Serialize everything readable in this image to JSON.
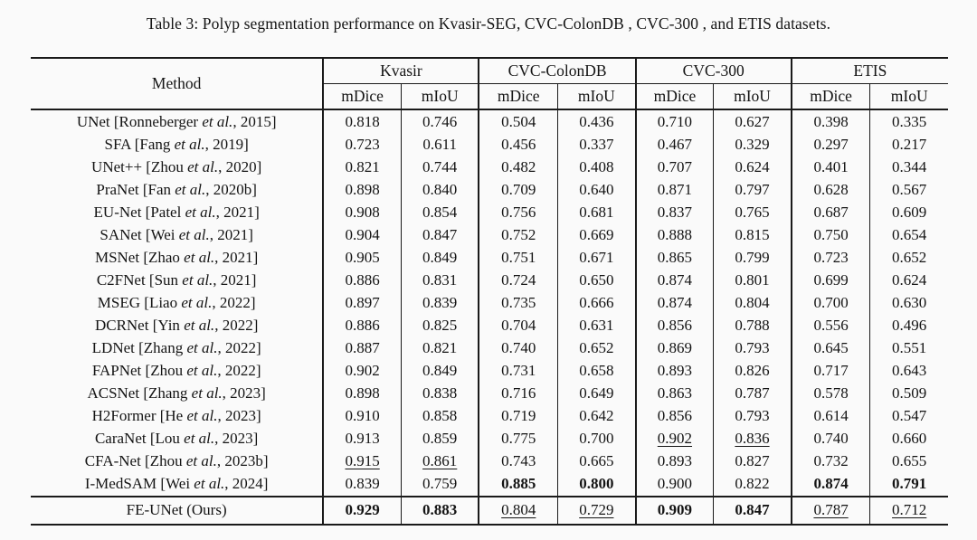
{
  "colors": {
    "ink": "#141414",
    "rule": "#1a1a1a",
    "background": "#fafafa"
  },
  "title": "Table 3: Polyp segmentation performance on Kvasir-SEG, CVC-ColonDB , CVC-300 , and ETIS datasets.",
  "table": {
    "method_header": "Method",
    "groups": [
      {
        "label": "Kvasir",
        "sub": [
          "mDice",
          "mIoU"
        ]
      },
      {
        "label": "CVC-ColonDB",
        "sub": [
          "mDice",
          "mIoU"
        ]
      },
      {
        "label": "CVC-300",
        "sub": [
          "mDice",
          "mIoU"
        ]
      },
      {
        "label": "ETIS",
        "sub": [
          "mDice",
          "mIoU"
        ]
      }
    ],
    "style_legend": {
      "n": "normal",
      "b": "bold-best",
      "u": "underline-second-best"
    },
    "rows": [
      {
        "m_pre": "UNet [Ronneberger ",
        "m_etal": "et al.",
        "m_post": ", 2015]",
        "v": [
          "0.818",
          "0.746",
          "0.504",
          "0.436",
          "0.710",
          "0.627",
          "0.398",
          "0.335"
        ],
        "s": [
          "n",
          "n",
          "n",
          "n",
          "n",
          "n",
          "n",
          "n"
        ],
        "ours": false
      },
      {
        "m_pre": "SFA [Fang ",
        "m_etal": "et al.",
        "m_post": ", 2019]",
        "v": [
          "0.723",
          "0.611",
          "0.456",
          "0.337",
          "0.467",
          "0.329",
          "0.297",
          "0.217"
        ],
        "s": [
          "n",
          "n",
          "n",
          "n",
          "n",
          "n",
          "n",
          "n"
        ],
        "ours": false
      },
      {
        "m_pre": "UNet++ [Zhou ",
        "m_etal": "et al.",
        "m_post": ", 2020]",
        "v": [
          "0.821",
          "0.744",
          "0.482",
          "0.408",
          "0.707",
          "0.624",
          "0.401",
          "0.344"
        ],
        "s": [
          "n",
          "n",
          "n",
          "n",
          "n",
          "n",
          "n",
          "n"
        ],
        "ours": false
      },
      {
        "m_pre": "PraNet [Fan ",
        "m_etal": "et al.",
        "m_post": ", 2020b]",
        "v": [
          "0.898",
          "0.840",
          "0.709",
          "0.640",
          "0.871",
          "0.797",
          "0.628",
          "0.567"
        ],
        "s": [
          "n",
          "n",
          "n",
          "n",
          "n",
          "n",
          "n",
          "n"
        ],
        "ours": false
      },
      {
        "m_pre": "EU-Net [Patel ",
        "m_etal": "et al.",
        "m_post": ", 2021]",
        "v": [
          "0.908",
          "0.854",
          "0.756",
          "0.681",
          "0.837",
          "0.765",
          "0.687",
          "0.609"
        ],
        "s": [
          "n",
          "n",
          "n",
          "n",
          "n",
          "n",
          "n",
          "n"
        ],
        "ours": false
      },
      {
        "m_pre": "SANet [Wei ",
        "m_etal": "et al.",
        "m_post": ", 2021]",
        "v": [
          "0.904",
          "0.847",
          "0.752",
          "0.669",
          "0.888",
          "0.815",
          "0.750",
          "0.654"
        ],
        "s": [
          "n",
          "n",
          "n",
          "n",
          "n",
          "n",
          "n",
          "n"
        ],
        "ours": false
      },
      {
        "m_pre": "MSNet [Zhao ",
        "m_etal": "et al.",
        "m_post": ", 2021]",
        "v": [
          "0.905",
          "0.849",
          "0.751",
          "0.671",
          "0.865",
          "0.799",
          "0.723",
          "0.652"
        ],
        "s": [
          "n",
          "n",
          "n",
          "n",
          "n",
          "n",
          "n",
          "n"
        ],
        "ours": false
      },
      {
        "m_pre": "C2FNet [Sun ",
        "m_etal": "et al.",
        "m_post": ", 2021]",
        "v": [
          "0.886",
          "0.831",
          "0.724",
          "0.650",
          "0.874",
          "0.801",
          "0.699",
          "0.624"
        ],
        "s": [
          "n",
          "n",
          "n",
          "n",
          "n",
          "n",
          "n",
          "n"
        ],
        "ours": false
      },
      {
        "m_pre": "MSEG [Liao ",
        "m_etal": "et al.",
        "m_post": ", 2022]",
        "v": [
          "0.897",
          "0.839",
          "0.735",
          "0.666",
          "0.874",
          "0.804",
          "0.700",
          "0.630"
        ],
        "s": [
          "n",
          "n",
          "n",
          "n",
          "n",
          "n",
          "n",
          "n"
        ],
        "ours": false
      },
      {
        "m_pre": "DCRNet [Yin ",
        "m_etal": "et al.",
        "m_post": ", 2022]",
        "v": [
          "0.886",
          "0.825",
          "0.704",
          "0.631",
          "0.856",
          "0.788",
          "0.556",
          "0.496"
        ],
        "s": [
          "n",
          "n",
          "n",
          "n",
          "n",
          "n",
          "n",
          "n"
        ],
        "ours": false
      },
      {
        "m_pre": "LDNet [Zhang ",
        "m_etal": "et al.",
        "m_post": ", 2022]",
        "v": [
          "0.887",
          "0.821",
          "0.740",
          "0.652",
          "0.869",
          "0.793",
          "0.645",
          "0.551"
        ],
        "s": [
          "n",
          "n",
          "n",
          "n",
          "n",
          "n",
          "n",
          "n"
        ],
        "ours": false
      },
      {
        "m_pre": "FAPNet [Zhou ",
        "m_etal": "et al.",
        "m_post": ", 2022]",
        "v": [
          "0.902",
          "0.849",
          "0.731",
          "0.658",
          "0.893",
          "0.826",
          "0.717",
          "0.643"
        ],
        "s": [
          "n",
          "n",
          "n",
          "n",
          "n",
          "n",
          "n",
          "n"
        ],
        "ours": false
      },
      {
        "m_pre": "ACSNet [Zhang ",
        "m_etal": "et al.",
        "m_post": ", 2023]",
        "v": [
          "0.898",
          "0.838",
          "0.716",
          "0.649",
          "0.863",
          "0.787",
          "0.578",
          "0.509"
        ],
        "s": [
          "n",
          "n",
          "n",
          "n",
          "n",
          "n",
          "n",
          "n"
        ],
        "ours": false
      },
      {
        "m_pre": "H2Former [He ",
        "m_etal": "et al.",
        "m_post": ", 2023]",
        "v": [
          "0.910",
          "0.858",
          "0.719",
          "0.642",
          "0.856",
          "0.793",
          "0.614",
          "0.547"
        ],
        "s": [
          "n",
          "n",
          "n",
          "n",
          "n",
          "n",
          "n",
          "n"
        ],
        "ours": false
      },
      {
        "m_pre": "CaraNet [Lou ",
        "m_etal": "et al.",
        "m_post": ", 2023]",
        "v": [
          "0.913",
          "0.859",
          "0.775",
          "0.700",
          "0.902",
          "0.836",
          "0.740",
          "0.660"
        ],
        "s": [
          "n",
          "n",
          "n",
          "n",
          "u",
          "u",
          "n",
          "n"
        ],
        "ours": false
      },
      {
        "m_pre": "CFA-Net [Zhou ",
        "m_etal": "et al.",
        "m_post": ", 2023b]",
        "v": [
          "0.915",
          "0.861",
          "0.743",
          "0.665",
          "0.893",
          "0.827",
          "0.732",
          "0.655"
        ],
        "s": [
          "u",
          "u",
          "n",
          "n",
          "n",
          "n",
          "n",
          "n"
        ],
        "ours": false
      },
      {
        "m_pre": "I-MedSAM [Wei ",
        "m_etal": "et al.",
        "m_post": ", 2024]",
        "v": [
          "0.839",
          "0.759",
          "0.885",
          "0.800",
          "0.900",
          "0.822",
          "0.874",
          "0.791"
        ],
        "s": [
          "n",
          "n",
          "b",
          "b",
          "n",
          "n",
          "b",
          "b"
        ],
        "ours": false
      },
      {
        "m_pre": "FE-UNet (Ours)",
        "m_etal": "",
        "m_post": "",
        "v": [
          "0.929",
          "0.883",
          "0.804",
          "0.729",
          "0.909",
          "0.847",
          "0.787",
          "0.712"
        ],
        "s": [
          "b",
          "b",
          "u",
          "u",
          "b",
          "b",
          "u",
          "u"
        ],
        "ours": true
      }
    ]
  }
}
